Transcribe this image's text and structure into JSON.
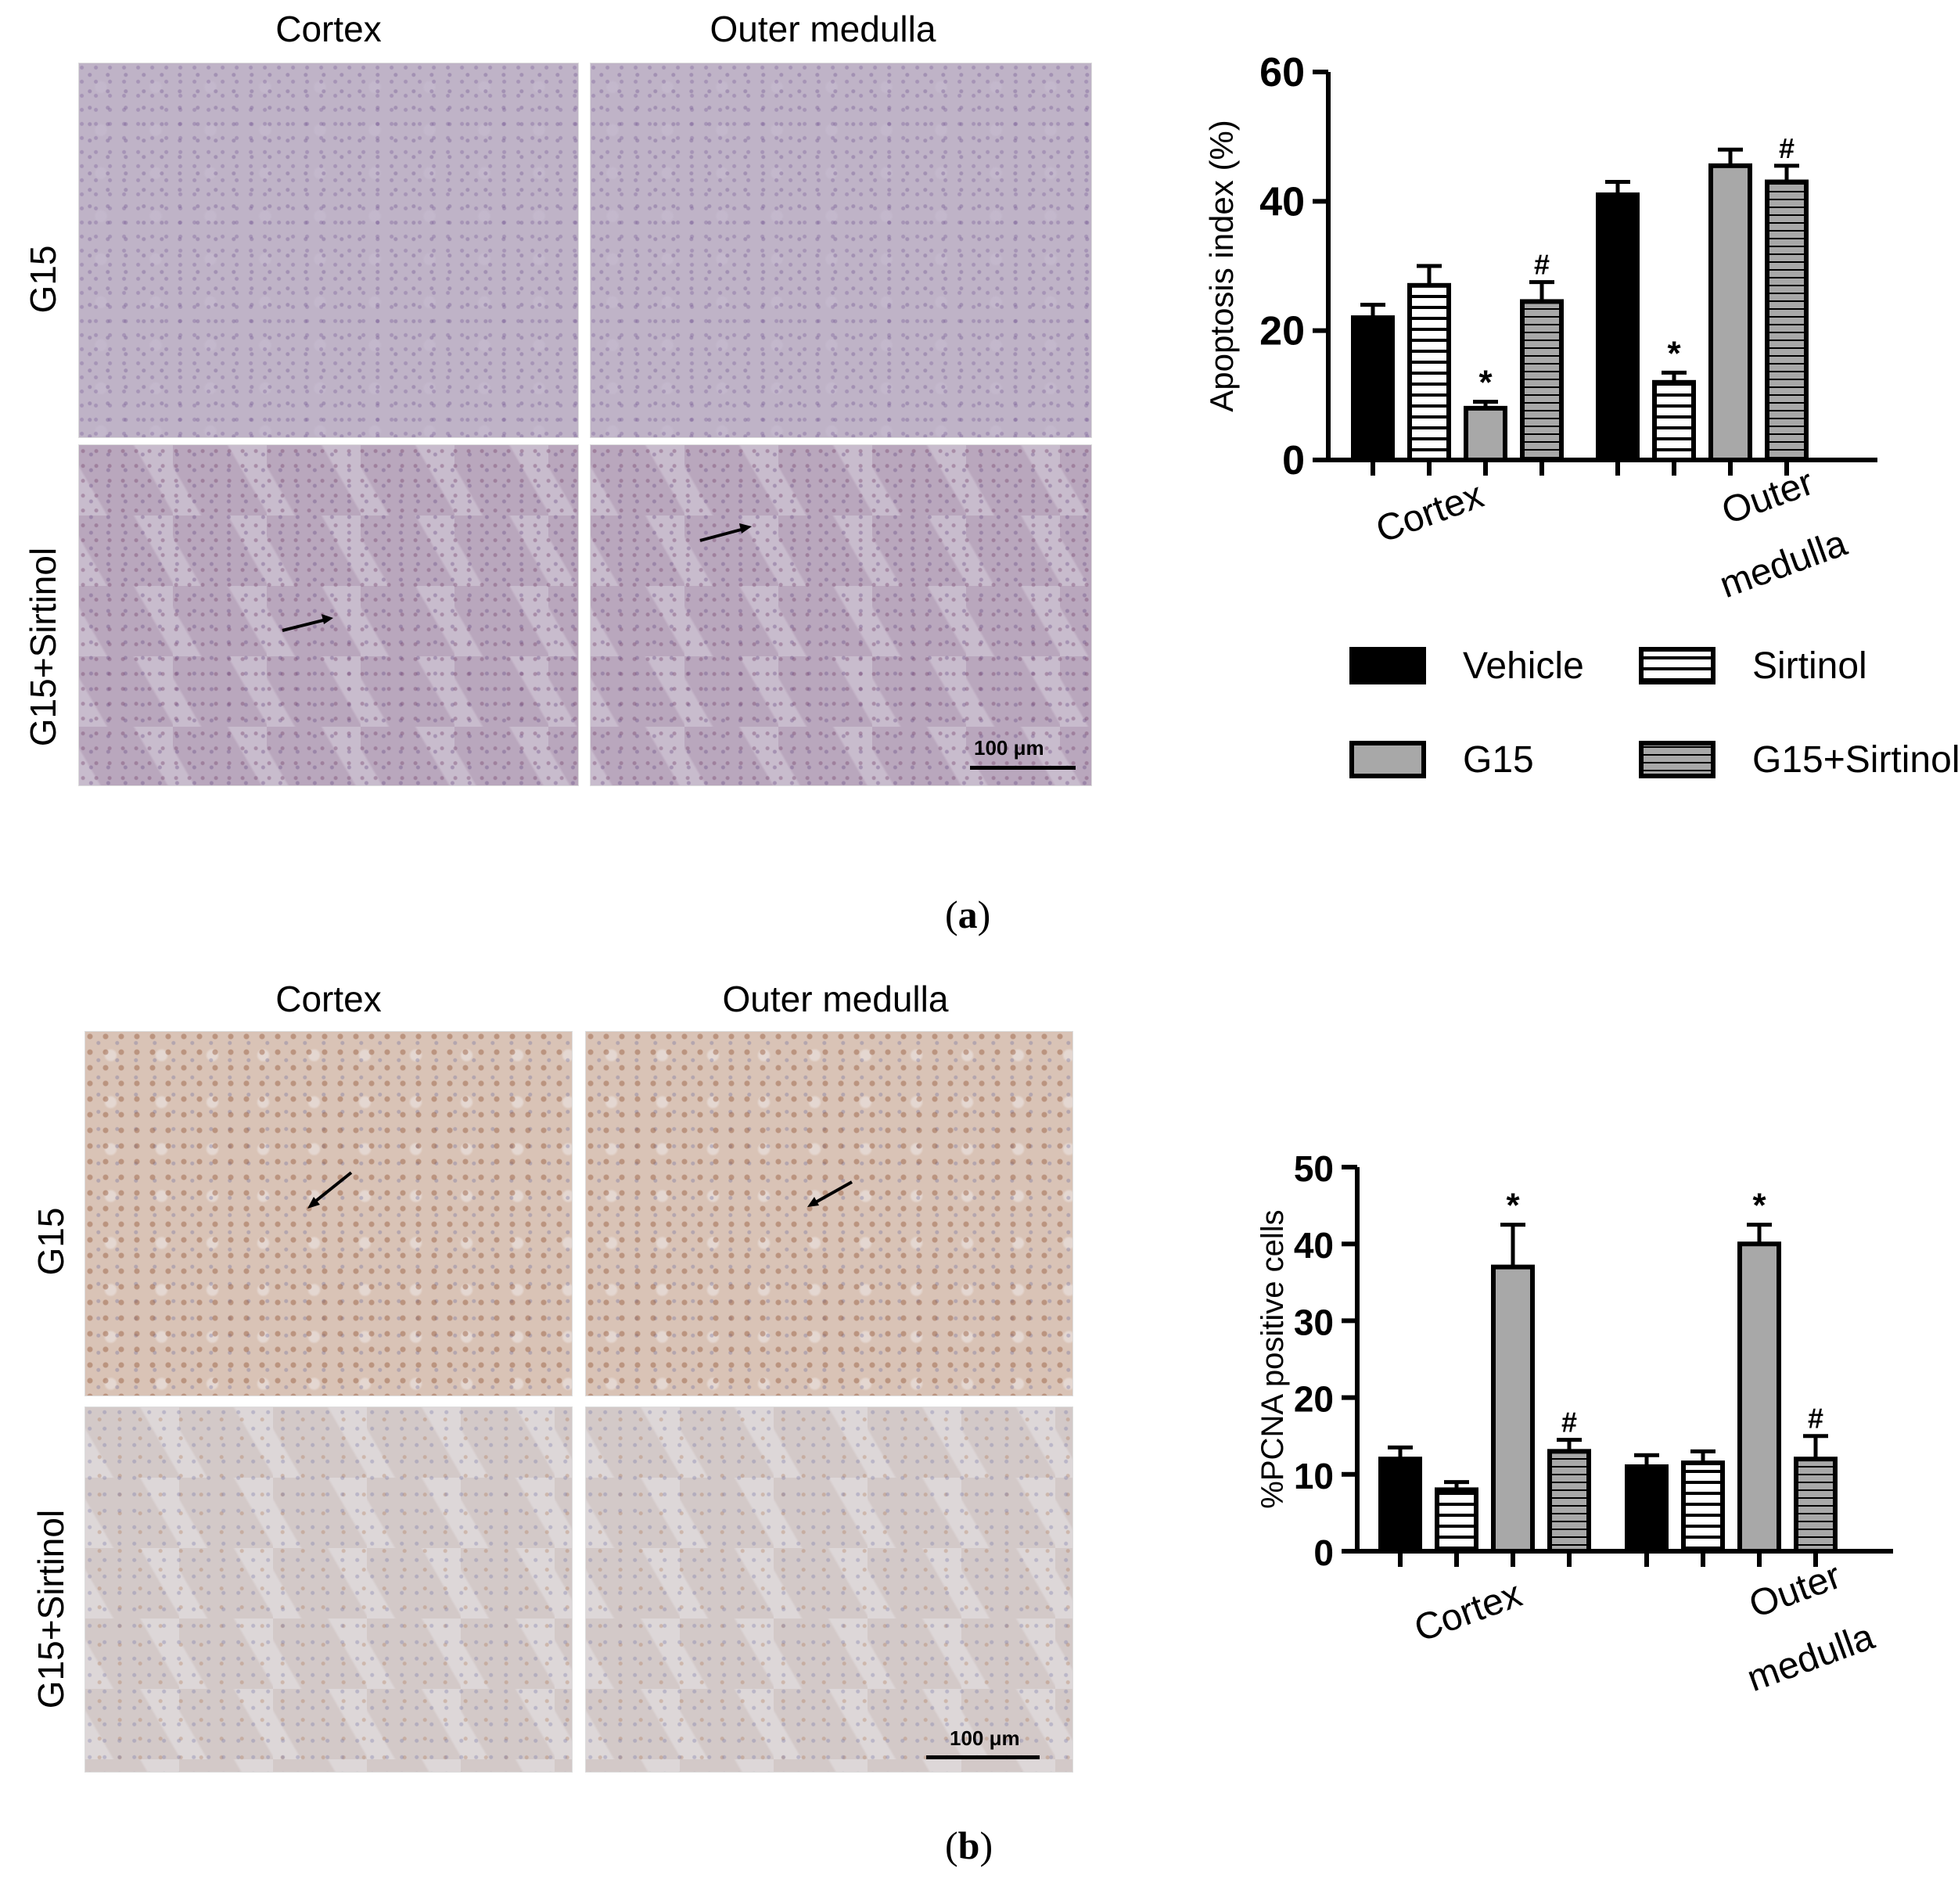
{
  "figure": {
    "panel_a": {
      "columns": [
        "Cortex",
        "Outer medulla"
      ],
      "rows": [
        "G15",
        "G15+Sirtinol"
      ],
      "scale_bar": "100 μm",
      "caption_open": "(",
      "caption_letter": "a",
      "caption_close": ")"
    },
    "panel_b": {
      "columns": [
        "Cortex",
        "Outer medulla"
      ],
      "rows": [
        "G15",
        "G15+Sirtinol"
      ],
      "scale_bar": "100 μm",
      "caption_open": "(",
      "caption_letter": "b",
      "caption_close": ")"
    },
    "legend": {
      "items": [
        {
          "label": "Vehicle",
          "pattern": "solid-black"
        },
        {
          "label": "Sirtinol",
          "pattern": "h-stripes-white"
        },
        {
          "label": "G15",
          "pattern": "solid-gray"
        },
        {
          "label": "G15+Sirtinol",
          "pattern": "h-stripes-gray"
        }
      ]
    },
    "colors": {
      "black": "#000000",
      "gray": "#a8a8a8",
      "white": "#ffffff"
    }
  },
  "chart_data": [
    {
      "type": "bar",
      "id": "apoptosis",
      "title": "",
      "xlabel": "",
      "ylabel": "Apoptosis index (%)",
      "ylim": [
        0,
        60
      ],
      "yticks": [
        0,
        20,
        40,
        60
      ],
      "categories": [
        "Cortex",
        "Outer medulla"
      ],
      "category_label_lines": [
        [
          "Cortex"
        ],
        [
          "Outer",
          "medulla"
        ]
      ],
      "series": [
        {
          "name": "Vehicle",
          "values": [
            22,
            41
          ],
          "errors": [
            2,
            2
          ],
          "marks": [
            "",
            ""
          ]
        },
        {
          "name": "Sirtinol",
          "values": [
            27,
            12
          ],
          "errors": [
            3,
            1.5
          ],
          "marks": [
            "",
            "*"
          ]
        },
        {
          "name": "G15",
          "values": [
            8,
            45.5
          ],
          "errors": [
            1,
            2.5
          ],
          "marks": [
            "*",
            ""
          ]
        },
        {
          "name": "G15+Sirtinol",
          "values": [
            24.5,
            43
          ],
          "errors": [
            3,
            2.5
          ],
          "marks": [
            "#",
            "#"
          ]
        }
      ]
    },
    {
      "type": "bar",
      "id": "pcna",
      "title": "",
      "xlabel": "",
      "ylabel": "%PCNA positive cells",
      "ylim": [
        0,
        50
      ],
      "yticks": [
        0,
        10,
        20,
        30,
        40,
        50
      ],
      "categories": [
        "Cortex",
        "Outer medulla"
      ],
      "category_label_lines": [
        [
          "Cortex"
        ],
        [
          "Outer",
          "medulla"
        ]
      ],
      "series": [
        {
          "name": "Vehicle",
          "values": [
            12,
            11
          ],
          "errors": [
            1.5,
            1.5
          ],
          "marks": [
            "",
            ""
          ]
        },
        {
          "name": "Sirtinol",
          "values": [
            8,
            11.5
          ],
          "errors": [
            1,
            1.5
          ],
          "marks": [
            "",
            ""
          ]
        },
        {
          "name": "G15",
          "values": [
            37,
            40
          ],
          "errors": [
            5.5,
            2.5
          ],
          "marks": [
            "*",
            "*"
          ]
        },
        {
          "name": "G15+Sirtinol",
          "values": [
            13,
            12
          ],
          "errors": [
            1.5,
            3
          ],
          "marks": [
            "#",
            "#"
          ]
        }
      ]
    }
  ]
}
